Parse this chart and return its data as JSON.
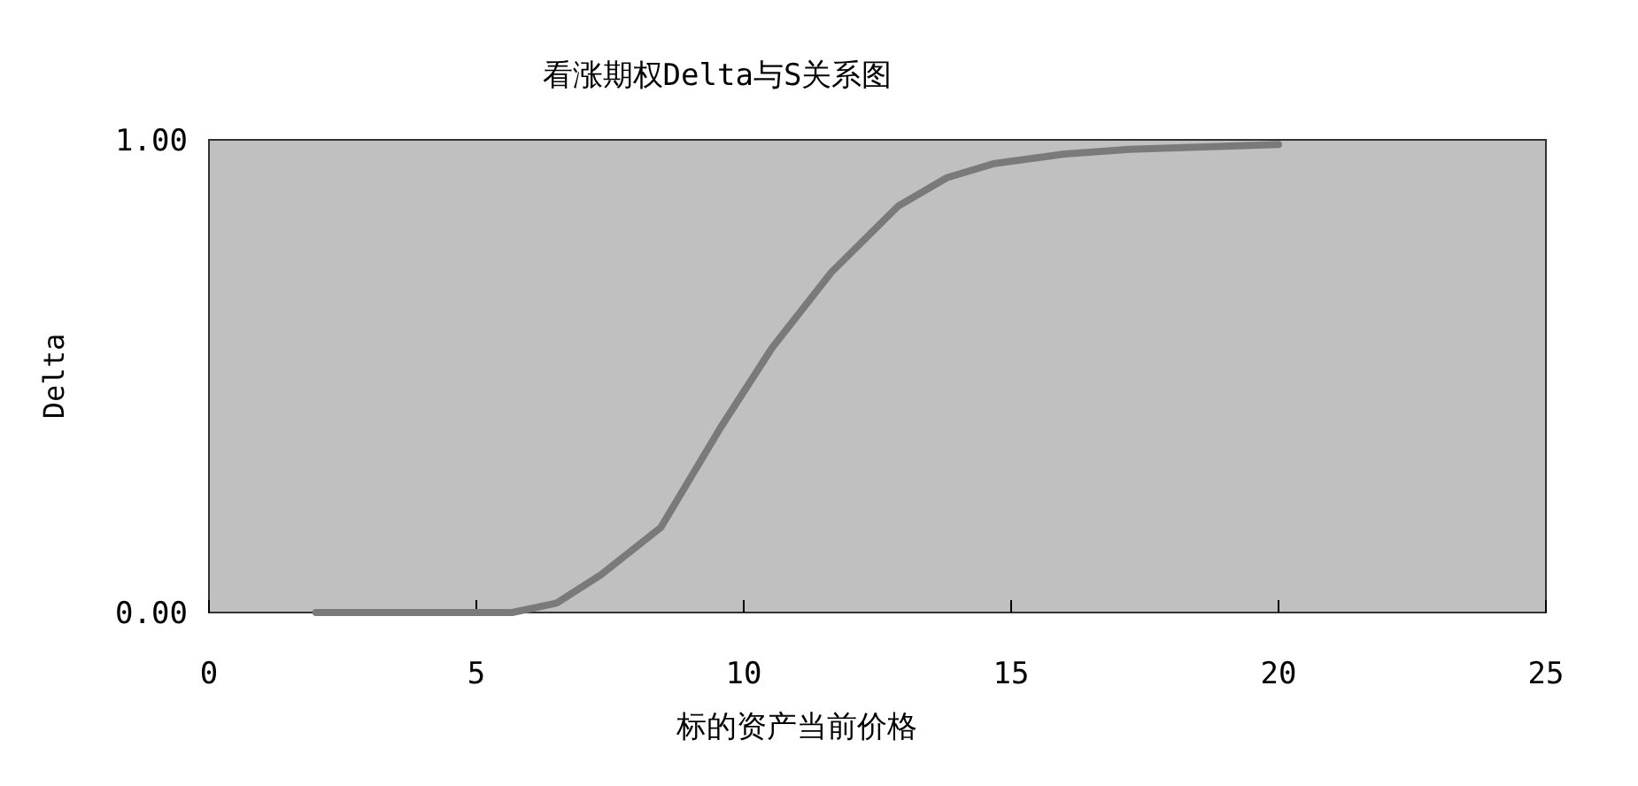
{
  "chart_data": {
    "type": "line",
    "title": "看涨期权Delta与S关系图",
    "xlabel": "标的资产当前价格",
    "ylabel": "Delta",
    "xlim": [
      0,
      25
    ],
    "xticks": [
      0,
      5,
      10,
      15,
      20,
      25
    ],
    "ylim": [
      0,
      1
    ],
    "yticks": [
      {
        "value": 0,
        "label": "0.00"
      },
      {
        "value": 1,
        "label": "1.00"
      }
    ],
    "grid": false,
    "series": [
      {
        "color": "#7a7a7a",
        "x": [
          2,
          4,
          5.67,
          6.5,
          7.33,
          8.45,
          9.56,
          10.53,
          11.64,
          12.89,
          13.8,
          14.69,
          16,
          17.2,
          20
        ],
        "values": [
          0,
          0,
          0,
          0.02,
          0.08,
          0.18,
          0.39,
          0.56,
          0.72,
          0.86,
          0.92,
          0.95,
          0.97,
          0.98,
          0.99
        ]
      }
    ]
  }
}
